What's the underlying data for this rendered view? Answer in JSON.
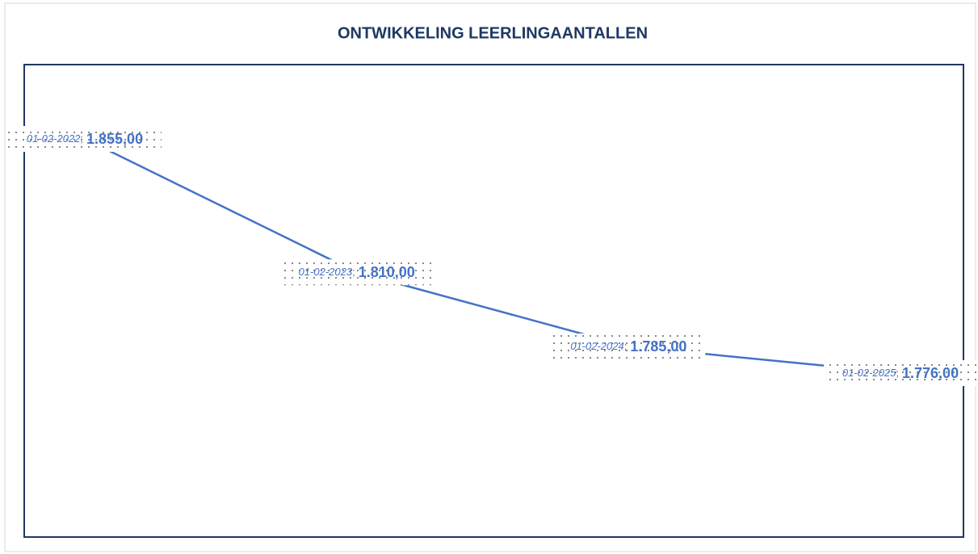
{
  "chart_data": {
    "type": "line",
    "title": "ONTWIKKELING LEERLINGAANTALLEN",
    "categories": [
      "01-02-2022",
      "01-02-2023",
      "01-02-2024",
      "01-02-2025"
    ],
    "series": [
      {
        "color": "#4472c4",
        "values": [
          1855,
          1810,
          1785,
          1776
        ],
        "value_labels": [
          "1.855,00",
          "1.810,00",
          "1.785,00",
          "1.776,00"
        ]
      }
    ],
    "label_separator": ";"
  }
}
